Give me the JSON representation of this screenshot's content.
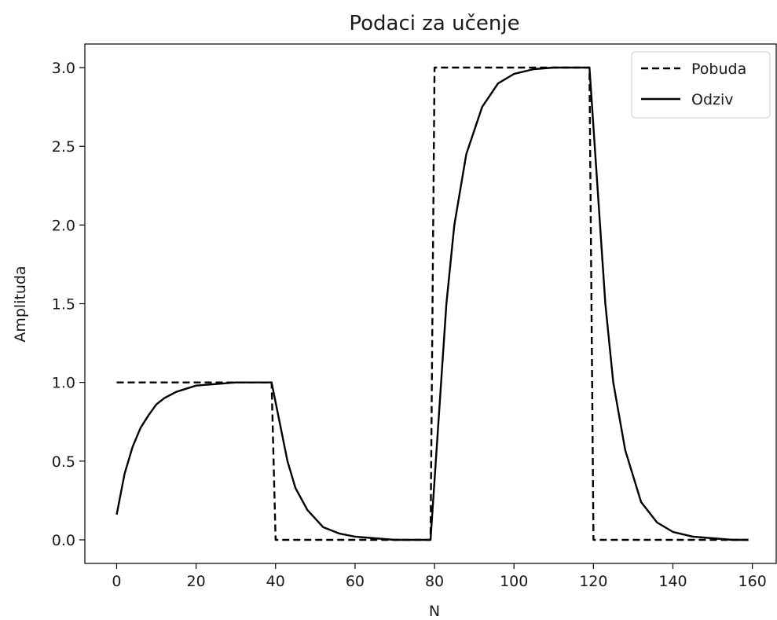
{
  "chart_data": {
    "type": "line",
    "title": "Podaci za učenje",
    "xlabel": "N",
    "ylabel": "Amplituda",
    "xlim": [
      -8,
      166
    ],
    "ylim": [
      -0.15,
      3.15
    ],
    "xticks": [
      0,
      20,
      40,
      60,
      80,
      100,
      120,
      140,
      160
    ],
    "xtick_labels": [
      "0",
      "20",
      "40",
      "60",
      "80",
      "100",
      "120",
      "140",
      "160"
    ],
    "yticks": [
      0.0,
      0.5,
      1.0,
      1.5,
      2.0,
      2.5,
      3.0
    ],
    "ytick_labels": [
      "0.0",
      "0.5",
      "1.0",
      "1.5",
      "2.0",
      "2.5",
      "3.0"
    ],
    "grid": false,
    "legend_position": "top-right",
    "series": [
      {
        "name": "Pobuda",
        "style": "dashed",
        "color": "#000000",
        "x": [
          0,
          39,
          40,
          79,
          80,
          119,
          120,
          159
        ],
        "y": [
          1,
          1,
          0,
          0,
          3,
          3,
          0,
          0
        ]
      },
      {
        "name": "Odziv",
        "style": "solid",
        "color": "#000000",
        "x": [
          0,
          2,
          4,
          6,
          8,
          10,
          12,
          15,
          20,
          25,
          30,
          35,
          39,
          41,
          43,
          45,
          48,
          52,
          56,
          60,
          65,
          70,
          75,
          79,
          81,
          83,
          85,
          88,
          92,
          96,
          100,
          105,
          110,
          115,
          119,
          121,
          123,
          125,
          128,
          132,
          136,
          140,
          145,
          150,
          155,
          159
        ],
        "y": [
          0.16,
          0.42,
          0.59,
          0.71,
          0.79,
          0.86,
          0.9,
          0.94,
          0.98,
          0.99,
          1.0,
          1.0,
          1.0,
          0.75,
          0.5,
          0.33,
          0.19,
          0.08,
          0.04,
          0.02,
          0.01,
          0.0,
          0.0,
          0.0,
          0.75,
          1.5,
          2.0,
          2.45,
          2.75,
          2.9,
          2.96,
          2.99,
          3.0,
          3.0,
          3.0,
          2.25,
          1.5,
          1.0,
          0.57,
          0.24,
          0.11,
          0.05,
          0.02,
          0.01,
          0.0,
          0.0
        ]
      }
    ]
  }
}
